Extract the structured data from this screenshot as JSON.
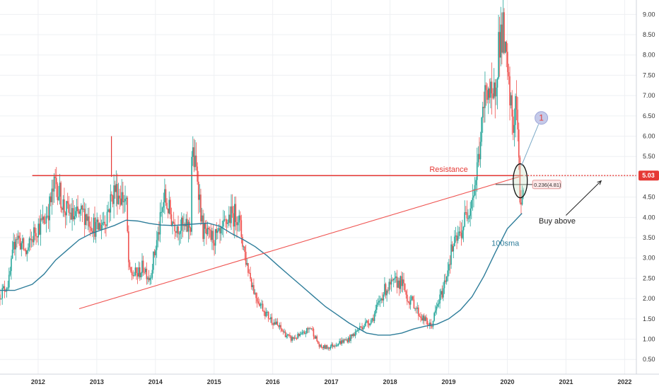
{
  "chart_data": {
    "type": "candlestick",
    "y_ticks": [
      "0.50",
      "1.00",
      "1.50",
      "2.00",
      "2.50",
      "3.00",
      "3.50",
      "4.00",
      "4.50",
      "5.00",
      "5.50",
      "6.00",
      "6.50",
      "7.00",
      "7.50",
      "8.00",
      "8.50",
      "9.00"
    ],
    "y_tick_values": [
      0.5,
      1.0,
      1.5,
      2.0,
      2.5,
      3.0,
      3.5,
      4.0,
      4.5,
      5.0,
      5.5,
      6.0,
      6.5,
      7.0,
      7.5,
      8.0,
      8.5,
      9.0
    ],
    "x_ticks": [
      "2012",
      "2013",
      "2014",
      "2015",
      "2016",
      "2017",
      "2018",
      "2019",
      "2020",
      "2021",
      "2022"
    ],
    "x_tick_years": [
      2012,
      2013,
      2014,
      2015,
      2016,
      2017,
      2018,
      2019,
      2020,
      2021,
      2022
    ],
    "xlim": [
      2011.35,
      2022.2
    ],
    "ylim": [
      0.26,
      9.18
    ],
    "price_path": [
      [
        2011.35,
        2.1
      ],
      [
        2011.5,
        2.4
      ],
      [
        2011.62,
        3.6
      ],
      [
        2011.8,
        3.1
      ],
      [
        2011.95,
        3.7
      ],
      [
        2012.1,
        3.9
      ],
      [
        2012.2,
        4.3
      ],
      [
        2012.3,
        4.9
      ],
      [
        2012.45,
        4.2
      ],
      [
        2012.6,
        4.0
      ],
      [
        2012.8,
        4.1
      ],
      [
        2013.0,
        3.7
      ],
      [
        2013.15,
        4.0
      ],
      [
        2013.3,
        4.7
      ],
      [
        2013.5,
        4.4
      ],
      [
        2013.55,
        2.6
      ],
      [
        2013.7,
        2.6
      ],
      [
        2013.8,
        2.8
      ],
      [
        2013.9,
        2.5
      ],
      [
        2014.05,
        3.6
      ],
      [
        2014.15,
        4.5
      ],
      [
        2014.3,
        3.9
      ],
      [
        2014.5,
        3.7
      ],
      [
        2014.6,
        3.8
      ],
      [
        2014.62,
        5.6
      ],
      [
        2014.72,
        5.0
      ],
      [
        2014.8,
        3.7
      ],
      [
        2014.9,
        3.5
      ],
      [
        2015.1,
        3.5
      ],
      [
        2015.25,
        4.0
      ],
      [
        2015.4,
        4.1
      ],
      [
        2015.55,
        2.9
      ],
      [
        2015.7,
        2.1
      ],
      [
        2015.9,
        1.6
      ],
      [
        2016.1,
        1.3
      ],
      [
        2016.3,
        1.0
      ],
      [
        2016.5,
        1.1
      ],
      [
        2016.65,
        1.3
      ],
      [
        2016.8,
        0.8
      ],
      [
        2016.95,
        0.8
      ],
      [
        2017.1,
        0.9
      ],
      [
        2017.3,
        1.0
      ],
      [
        2017.5,
        1.3
      ],
      [
        2017.7,
        1.5
      ],
      [
        2017.9,
        2.2
      ],
      [
        2018.1,
        2.4
      ],
      [
        2018.2,
        2.4
      ],
      [
        2018.3,
        2.0
      ],
      [
        2018.4,
        1.9
      ],
      [
        2018.5,
        1.6
      ],
      [
        2018.7,
        1.3
      ],
      [
        2018.8,
        1.8
      ],
      [
        2018.9,
        2.2
      ],
      [
        2019.05,
        3.2
      ],
      [
        2019.2,
        3.6
      ],
      [
        2019.35,
        4.3
      ],
      [
        2019.45,
        4.8
      ],
      [
        2019.55,
        6.0
      ],
      [
        2019.65,
        7.4
      ],
      [
        2019.75,
        6.6
      ],
      [
        2019.85,
        8.3
      ],
      [
        2019.92,
        8.6
      ],
      [
        2020.0,
        7.4
      ],
      [
        2020.1,
        6.2
      ],
      [
        2020.15,
        7.0
      ],
      [
        2020.22,
        4.3
      ],
      [
        2020.28,
        4.9
      ]
    ],
    "sma_100": [
      [
        2011.35,
        2.2
      ],
      [
        2011.6,
        2.2
      ],
      [
        2011.9,
        2.35
      ],
      [
        2012.1,
        2.6
      ],
      [
        2012.3,
        2.95
      ],
      [
        2012.5,
        3.2
      ],
      [
        2012.7,
        3.45
      ],
      [
        2012.9,
        3.6
      ],
      [
        2013.1,
        3.7
      ],
      [
        2013.3,
        3.8
      ],
      [
        2013.5,
        3.93
      ],
      [
        2013.7,
        3.91
      ],
      [
        2013.9,
        3.85
      ],
      [
        2014.1,
        3.81
      ],
      [
        2014.3,
        3.8
      ],
      [
        2014.5,
        3.82
      ],
      [
        2014.7,
        3.84
      ],
      [
        2014.9,
        3.86
      ],
      [
        2015.1,
        3.78
      ],
      [
        2015.3,
        3.6
      ],
      [
        2015.5,
        3.45
      ],
      [
        2015.7,
        3.28
      ],
      [
        2015.9,
        3.06
      ],
      [
        2016.1,
        2.8
      ],
      [
        2016.3,
        2.55
      ],
      [
        2016.5,
        2.3
      ],
      [
        2016.7,
        2.05
      ],
      [
        2016.9,
        1.8
      ],
      [
        2017.1,
        1.6
      ],
      [
        2017.3,
        1.4
      ],
      [
        2017.45,
        1.27
      ],
      [
        2017.6,
        1.15
      ],
      [
        2017.8,
        1.1
      ],
      [
        2018.0,
        1.1
      ],
      [
        2018.2,
        1.15
      ],
      [
        2018.4,
        1.25
      ],
      [
        2018.6,
        1.32
      ],
      [
        2018.8,
        1.37
      ],
      [
        2019.0,
        1.5
      ],
      [
        2019.2,
        1.72
      ],
      [
        2019.4,
        2.05
      ],
      [
        2019.6,
        2.55
      ],
      [
        2019.8,
        3.15
      ],
      [
        2020.0,
        3.72
      ],
      [
        2020.25,
        4.1
      ]
    ],
    "resistance": {
      "value": 5.03,
      "label": "Resistance"
    },
    "trendline": {
      "x": [
        2012.7,
        2020.2
      ],
      "y": [
        1.75,
        5.0
      ]
    },
    "spike": {
      "x": 2013.25,
      "y": [
        5.0,
        6.0
      ]
    },
    "fib": {
      "x": [
        2019.8,
        2020.6
      ],
      "y": 4.81,
      "label": "0.236(4.81)"
    },
    "sma_label": "100sma",
    "marker": {
      "label": "1",
      "x": 2020.58,
      "y": 6.45
    },
    "buy_note": {
      "label": "Buy above",
      "x": 2020.85,
      "y": 3.85
    },
    "buy_arrow": {
      "from": [
        2021.0,
        4.05
      ],
      "to": [
        2021.6,
        4.9
      ]
    },
    "price_badge": "5.03",
    "colors": {
      "resistance": "#e53935",
      "trendline": "#ef5350",
      "sma": "#2e7d9a",
      "bull": "#26a69a",
      "bear": "#ef5350",
      "badge": "#e53935",
      "marker_fill": "#c5cae9",
      "grid": "#eef0f3"
    }
  }
}
